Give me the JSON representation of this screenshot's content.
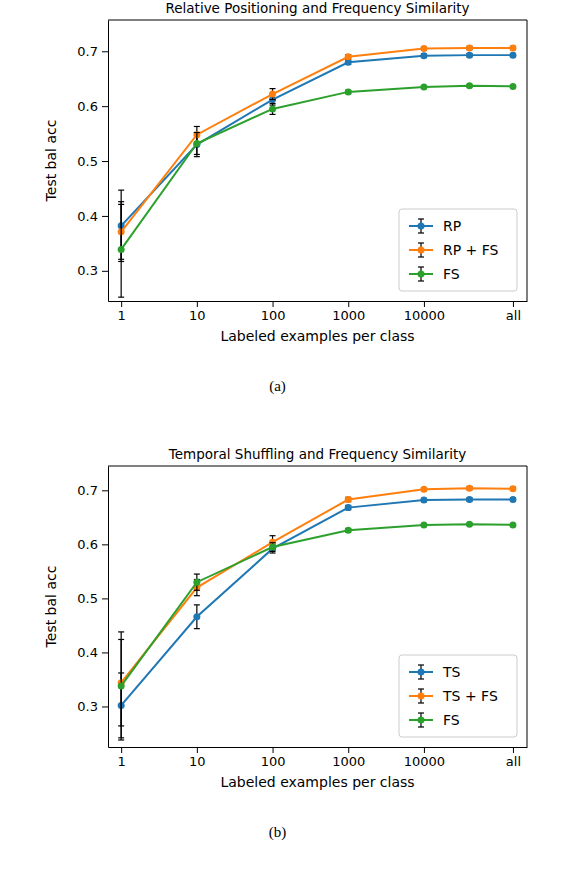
{
  "chart_data": [
    {
      "type": "line",
      "title": "Relative Positioning and Frequency Similarity",
      "caption": "(a)",
      "x_label": "Labeled examples per class",
      "y_label": "Test bal acc",
      "log": "x",
      "legend": "lower right",
      "marker": "circle",
      "x": [
        1,
        10,
        100,
        1000,
        10000,
        40000,
        150000
      ],
      "xlim": [
        0.67,
        230000
      ],
      "xticks": [
        1,
        10,
        100,
        1000,
        10000,
        {
          "value": 150000,
          "label": "all"
        }
      ],
      "ylim": [
        0.245,
        0.757
      ],
      "yticks": [
        0.3,
        0.4,
        0.5,
        0.6,
        0.7
      ],
      "series": [
        {
          "name": "RP",
          "color": "#1f77b4",
          "values": [
            0.382,
            0.53,
            0.612,
            0.68,
            0.692,
            0.693,
            0.693
          ],
          "errors": [
            0.065,
            0.022,
            0.01,
            0.004,
            0.003,
            0.003,
            0.003
          ]
        },
        {
          "name": "RP + FS",
          "color": "#ff7f0e",
          "values": [
            0.371,
            0.548,
            0.622,
            0.69,
            0.705,
            0.706,
            0.706
          ],
          "errors": [
            0.05,
            0.015,
            0.01,
            0.004,
            0.003,
            0.003,
            0.003
          ]
        },
        {
          "name": "FS",
          "color": "#2ca02c",
          "values": [
            0.339,
            0.532,
            0.595,
            0.626,
            0.635,
            0.637,
            0.636
          ],
          "errors": [
            0.087,
            0.02,
            0.01,
            0.003,
            0.002,
            0.002,
            0.002
          ]
        }
      ]
    },
    {
      "type": "line",
      "title": "Temporal Shuffling and Frequency Similarity",
      "caption": "(b)",
      "x_label": "Labeled examples per class",
      "y_label": "Test bal acc",
      "log": "x",
      "legend": "lower right",
      "marker": "circle",
      "x": [
        1,
        10,
        100,
        1000,
        10000,
        40000,
        150000
      ],
      "xlim": [
        0.67,
        230000
      ],
      "xticks": [
        1,
        10,
        100,
        1000,
        10000,
        {
          "value": 150000,
          "label": "all"
        }
      ],
      "ylim": [
        0.225,
        0.745
      ],
      "yticks": [
        0.3,
        0.4,
        0.5,
        0.6,
        0.7
      ],
      "series": [
        {
          "name": "TS",
          "color": "#1f77b4",
          "values": [
            0.302,
            0.466,
            0.592,
            0.668,
            0.682,
            0.683,
            0.683
          ],
          "errors": [
            0.06,
            0.022,
            0.008,
            0.004,
            0.003,
            0.003,
            0.003
          ]
        },
        {
          "name": "TS + FS",
          "color": "#ff7f0e",
          "values": [
            0.344,
            0.52,
            0.604,
            0.683,
            0.702,
            0.704,
            0.703
          ],
          "errors": [
            0.08,
            0.015,
            0.012,
            0.004,
            0.003,
            0.003,
            0.003
          ]
        },
        {
          "name": "FS",
          "color": "#2ca02c",
          "values": [
            0.338,
            0.53,
            0.595,
            0.626,
            0.636,
            0.637,
            0.636
          ],
          "errors": [
            0.1,
            0.015,
            0.008,
            0.003,
            0.002,
            0.002,
            0.002
          ]
        }
      ]
    }
  ]
}
